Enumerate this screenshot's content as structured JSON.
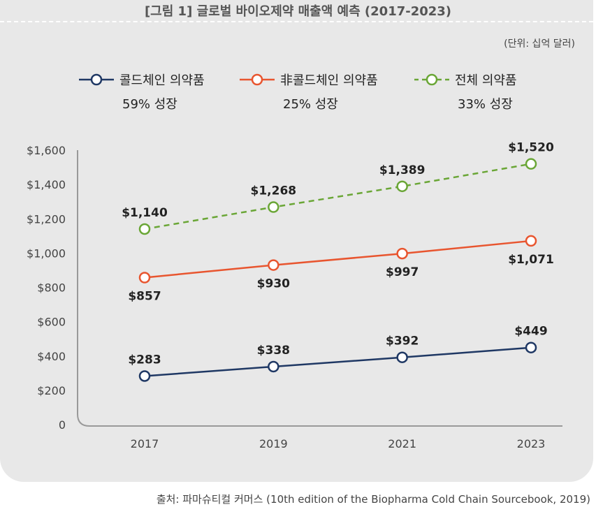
{
  "chart_data": {
    "type": "line",
    "title": "[그림 1] 글로벌 바이오제약 매출액 예측 (2017-2023)",
    "unit_note": "(단위: 십억 달러)",
    "categories": [
      "2017",
      "2019",
      "2021",
      "2023"
    ],
    "ylim": [
      0,
      1600
    ],
    "yticks": [
      "0",
      "$200",
      "$400",
      "$600",
      "$800",
      "$1,000",
      "$1,200",
      "$1,400",
      "$1,600"
    ],
    "grid": false,
    "legend_position": "top",
    "series": [
      {
        "name": "콜드체인 의약품",
        "growth": "59% 성장",
        "color": "#1f3864",
        "dashed": false,
        "values": [
          283,
          338,
          392,
          449
        ],
        "labels": [
          "$283",
          "$338",
          "$392",
          "$449"
        ],
        "label_side": "above"
      },
      {
        "name": "非콜드체인 의약품",
        "growth": "25% 성장",
        "color": "#e8552f",
        "dashed": false,
        "values": [
          857,
          930,
          997,
          1071
        ],
        "labels": [
          "$857",
          "$930",
          "$997",
          "$1,071"
        ],
        "label_side": "below"
      },
      {
        "name": "전체 의약품",
        "growth": "33% 성장",
        "color": "#6aa636",
        "dashed": true,
        "values": [
          1140,
          1268,
          1389,
          1520
        ],
        "labels": [
          "$1,140",
          "$1,268",
          "$1,389",
          "$1,520"
        ],
        "label_side": "above"
      }
    ],
    "source": "출처: 파마슈티컬 커머스 (10th edition of the Biopharma Cold Chain Sourcebook, 2019)"
  }
}
